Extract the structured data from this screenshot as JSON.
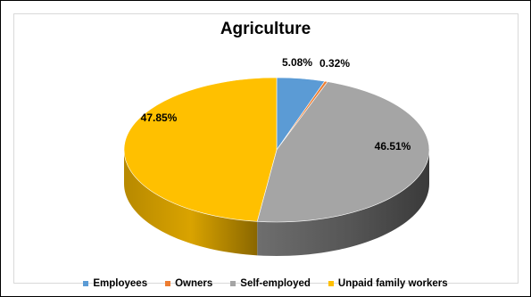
{
  "chart_data": {
    "type": "pie",
    "title": "Agriculture",
    "slices": [
      {
        "name": "Employees",
        "value": 5.08,
        "label": "5.08%",
        "color": "#5b9bd5"
      },
      {
        "name": "Owners",
        "value": 0.32,
        "label": "0.32%",
        "color": "#ed7d31"
      },
      {
        "name": "Self-employed",
        "value": 46.51,
        "label": "46.51%",
        "color": "#a5a5a5"
      },
      {
        "name": "Unpaid family workers",
        "value": 47.85,
        "label": "47.85%",
        "color": "#ffc000"
      }
    ],
    "legend_position": "bottom",
    "style": "3d"
  }
}
